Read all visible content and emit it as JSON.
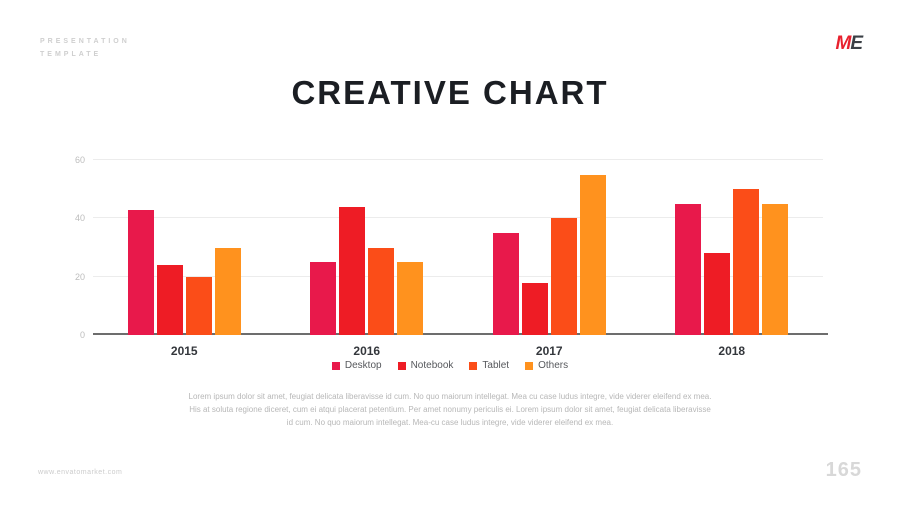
{
  "header": {
    "kicker_line1": "PRESENTATION",
    "kicker_line2": "TEMPLATE",
    "logo_m": "M",
    "logo_e": "E"
  },
  "title": "CREATIVE CHART",
  "chart_data": {
    "type": "bar",
    "title": "CREATIVE CHART",
    "categories": [
      "2015",
      "2016",
      "2017",
      "2018"
    ],
    "series": [
      {
        "name": "Desktop",
        "color": "#e8194b",
        "values": [
          43,
          25,
          35,
          45
        ]
      },
      {
        "name": "Notebook",
        "color": "#ee1c25",
        "values": [
          24,
          44,
          18,
          28
        ]
      },
      {
        "name": "Tablet",
        "color": "#fb4d18",
        "values": [
          20,
          30,
          40,
          50
        ]
      },
      {
        "name": "Others",
        "color": "#ff921e",
        "values": [
          30,
          25,
          55,
          45
        ]
      }
    ],
    "xlabel": "",
    "ylabel": "",
    "ylim": [
      0,
      60
    ],
    "yticks": [
      0,
      20,
      40,
      60
    ],
    "grid": true,
    "legend_position": "bottom"
  },
  "description": "Lorem ipsum dolor sit amet, feugiat delicata liberavisse id cum. No quo maiorum intellegat. Mea cu case ludus integre, vide viderer eleifend ex mea. His at soluta regione diceret, cum ei atqui placerat petentium. Per amet nonumy periculis ei. Lorem ipsum dolor sit amet, feugiat delicata liberavisse id cum. No quo maiorum intellegat. Mea-cu case ludus integre, vide viderer eleifend ex mea.",
  "footer": {
    "website": "www.envatomarket.com",
    "page_number": "165"
  }
}
